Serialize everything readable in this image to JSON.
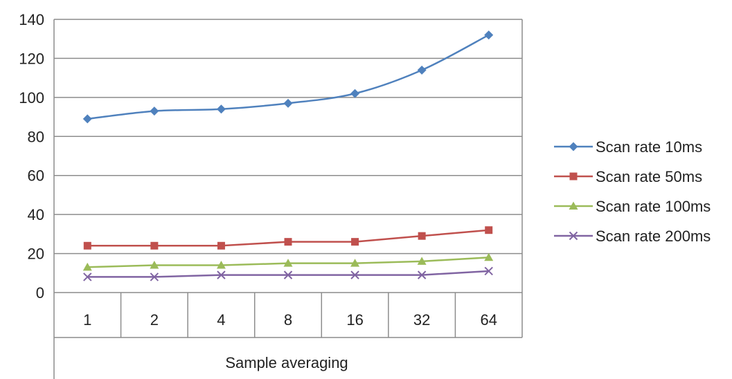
{
  "chart_data": {
    "type": "line",
    "title": "",
    "xlabel": "Sample averaging",
    "ylabel": "",
    "categories": [
      "1",
      "2",
      "4",
      "8",
      "16",
      "32",
      "64"
    ],
    "ylim": [
      0,
      140
    ],
    "yticks": [
      0,
      20,
      40,
      60,
      80,
      100,
      120,
      140
    ],
    "grid": "horizontal",
    "legend_position": "right",
    "series": [
      {
        "name": "Scan rate 10ms",
        "values": [
          89,
          93,
          94,
          97,
          102,
          114,
          132
        ],
        "color": "#4f81bd",
        "marker": "diamond"
      },
      {
        "name": "Scan rate 50ms",
        "values": [
          24,
          24,
          24,
          26,
          26,
          29,
          32
        ],
        "color": "#c0504d",
        "marker": "square"
      },
      {
        "name": "Scan rate 100ms",
        "values": [
          13,
          14,
          14,
          15,
          15,
          16,
          18
        ],
        "color": "#9bbb59",
        "marker": "triangle"
      },
      {
        "name": "Scan rate 200ms",
        "values": [
          8,
          8,
          9,
          9,
          9,
          9,
          11
        ],
        "color": "#8064a2",
        "marker": "x"
      }
    ]
  }
}
